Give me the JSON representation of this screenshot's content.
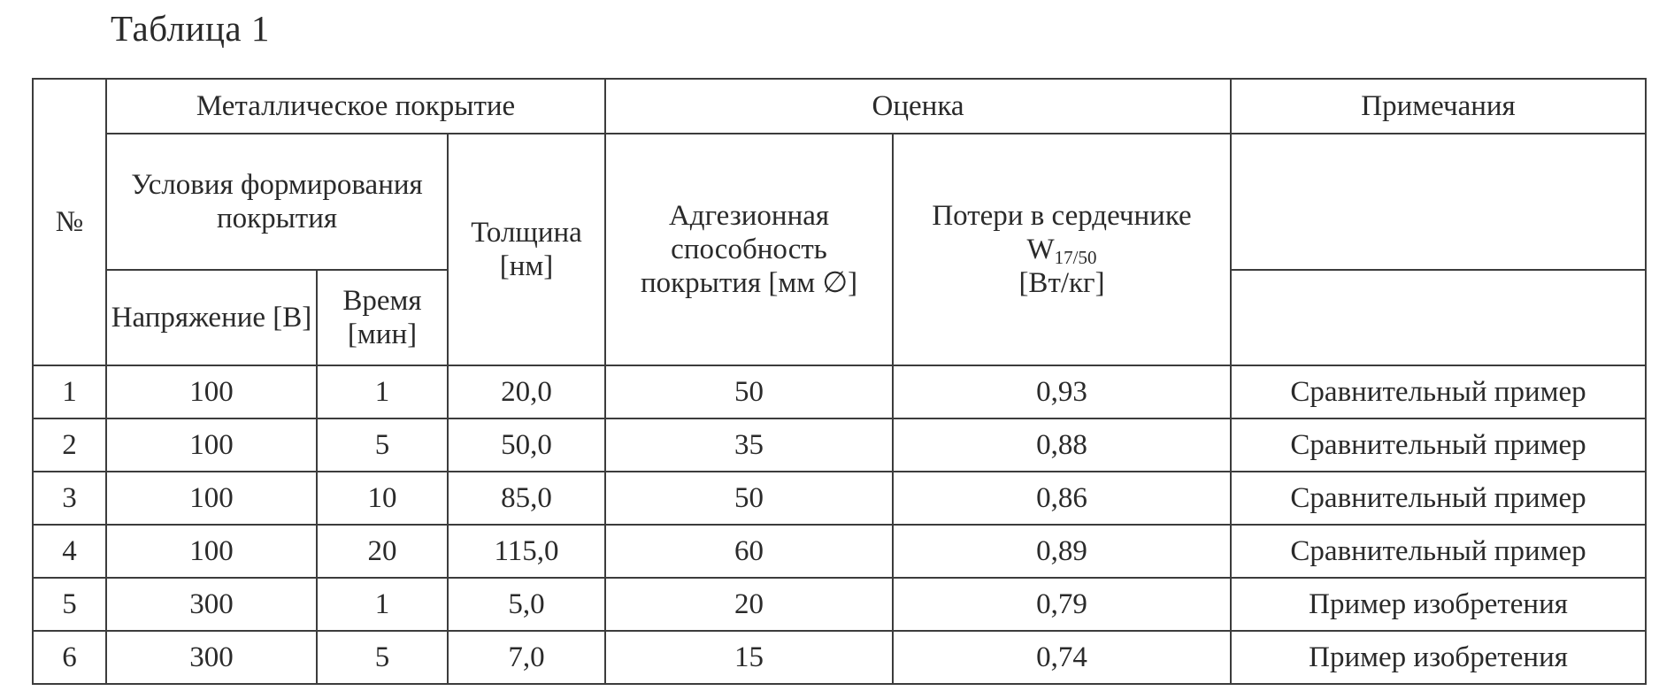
{
  "caption": "Таблица 1",
  "header": {
    "num": "№",
    "metal_coating": "Металлическое покрытие",
    "assessment": "Оценка",
    "notes": "Примечания",
    "formation_conditions": "Условия формирования покрытия",
    "thickness": "Толщина [нм]",
    "adhesion": "Адгезионная способность покрытия [мм ∅]",
    "core_loss_prefix": "Потери в сердечнике W",
    "core_loss_subscript": "17/50",
    "core_loss_unit": "[Вт/кг]",
    "voltage": "Напряжение [В]",
    "time": "Время [мин]"
  },
  "rows": [
    {
      "num": "1",
      "voltage": "100",
      "time": "1",
      "thickness": "20,0",
      "adhesion": "50",
      "core_loss": "0,93",
      "note": "Сравнительный пример"
    },
    {
      "num": "2",
      "voltage": "100",
      "time": "5",
      "thickness": "50,0",
      "adhesion": "35",
      "core_loss": "0,88",
      "note": "Сравнительный пример"
    },
    {
      "num": "3",
      "voltage": "100",
      "time": "10",
      "thickness": "85,0",
      "adhesion": "50",
      "core_loss": "0,86",
      "note": "Сравнительный пример"
    },
    {
      "num": "4",
      "voltage": "100",
      "time": "20",
      "thickness": "115,0",
      "adhesion": "60",
      "core_loss": "0,89",
      "note": "Сравнительный пример"
    },
    {
      "num": "5",
      "voltage": "300",
      "time": "1",
      "thickness": "5,0",
      "adhesion": "20",
      "core_loss": "0,79",
      "note": "Пример изобретения"
    },
    {
      "num": "6",
      "voltage": "300",
      "time": "5",
      "thickness": "7,0",
      "adhesion": "15",
      "core_loss": "0,74",
      "note": "Пример изобретения"
    }
  ]
}
